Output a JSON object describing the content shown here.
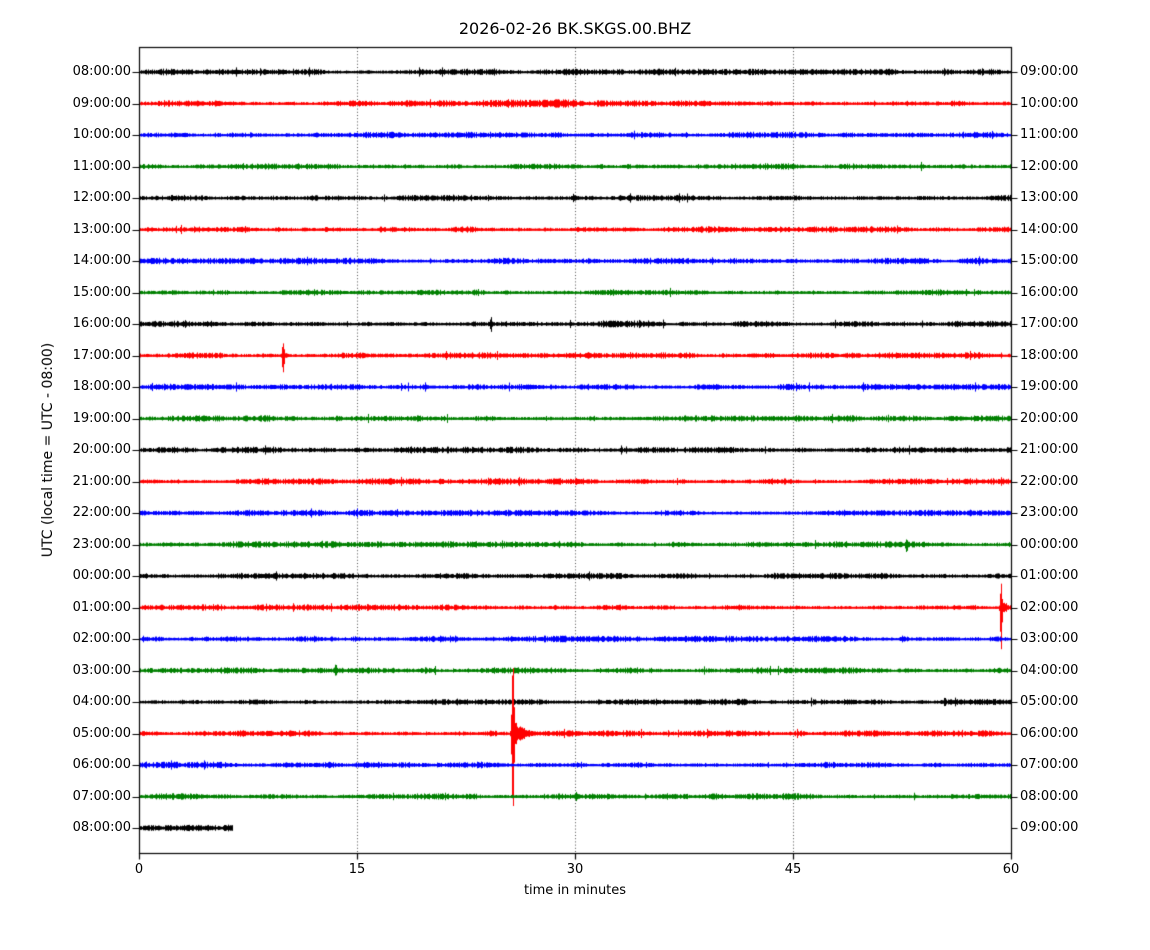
{
  "chart_data": {
    "type": "line",
    "title": "2026-02-26 BK.SKGS.00.BHZ",
    "xlabel": "time in minutes",
    "ylabel": "UTC (local time = UTC - 08:00)",
    "xlim": [
      0,
      60
    ],
    "x_ticks": [
      "0",
      "15",
      "30",
      "45",
      "60"
    ],
    "x_tick_values": [
      0,
      15,
      30,
      45,
      60
    ],
    "x_gridlines_minutes": [
      15,
      30,
      45
    ],
    "grid_style": "dotted-vertical",
    "legend": "none",
    "minutes_per_row": 60,
    "trace_color_cycle": [
      "#000000",
      "#ff0000",
      "#0000ff",
      "#008000"
    ],
    "grid_color": "#3a3a3a",
    "default_noise_amp": 1.5,
    "rows": [
      {
        "left_label": "08:00:00",
        "right_label": "09:00:00",
        "color": "#000000",
        "extent_min": 60,
        "events": [
          {
            "minute": 49.7,
            "amp_up": 4,
            "amp_down": 4,
            "sigma": 0.06,
            "coda_amp": 0,
            "coda_tau": 0.2
          }
        ]
      },
      {
        "left_label": "09:00:00",
        "right_label": "10:00:00",
        "color": "#ff0000",
        "extent_min": 60,
        "bursts": [
          {
            "start": 17,
            "end": 30,
            "factor": 1.35
          }
        ]
      },
      {
        "left_label": "10:00:00",
        "right_label": "11:00:00",
        "color": "#0000ff",
        "extent_min": 60
      },
      {
        "left_label": "11:00:00",
        "right_label": "12:00:00",
        "color": "#008000",
        "extent_min": 60
      },
      {
        "left_label": "12:00:00",
        "right_label": "13:00:00",
        "color": "#000000",
        "extent_min": 60
      },
      {
        "left_label": "13:00:00",
        "right_label": "14:00:00",
        "color": "#ff0000",
        "extent_min": 60
      },
      {
        "left_label": "14:00:00",
        "right_label": "15:00:00",
        "color": "#0000ff",
        "extent_min": 60
      },
      {
        "left_label": "15:00:00",
        "right_label": "16:00:00",
        "color": "#008000",
        "extent_min": 60
      },
      {
        "left_label": "16:00:00",
        "right_label": "17:00:00",
        "color": "#000000",
        "extent_min": 60,
        "bursts": [
          {
            "start": 24,
            "end": 35,
            "factor": 1.3
          }
        ],
        "events": [
          {
            "minute": 24.2,
            "amp_up": 7,
            "amp_down": 8,
            "sigma": 0.09,
            "coda_amp": 4,
            "coda_tau": 0.2
          }
        ]
      },
      {
        "left_label": "17:00:00",
        "right_label": "18:00:00",
        "color": "#ff0000",
        "extent_min": 60,
        "events": [
          {
            "minute": 9.9,
            "amp_up": 13,
            "amp_down": 18,
            "sigma": 0.09,
            "coda_amp": 6,
            "coda_tau": 0.25
          }
        ]
      },
      {
        "left_label": "18:00:00",
        "right_label": "19:00:00",
        "color": "#0000ff",
        "extent_min": 60
      },
      {
        "left_label": "19:00:00",
        "right_label": "20:00:00",
        "color": "#008000",
        "extent_min": 60
      },
      {
        "left_label": "20:00:00",
        "right_label": "21:00:00",
        "color": "#000000",
        "extent_min": 60
      },
      {
        "left_label": "21:00:00",
        "right_label": "22:00:00",
        "color": "#ff0000",
        "extent_min": 60
      },
      {
        "left_label": "22:00:00",
        "right_label": "23:00:00",
        "color": "#0000ff",
        "extent_min": 60
      },
      {
        "left_label": "23:00:00",
        "right_label": "00:00:00",
        "color": "#008000",
        "extent_min": 60,
        "events": [
          {
            "minute": 52.8,
            "amp_up": 6,
            "amp_down": 9,
            "sigma": 0.1,
            "coda_amp": 4,
            "coda_tau": 0.2
          }
        ]
      },
      {
        "left_label": "00:00:00",
        "right_label": "01:00:00",
        "color": "#000000",
        "extent_min": 60
      },
      {
        "left_label": "01:00:00",
        "right_label": "02:00:00",
        "color": "#ff0000",
        "extent_min": 60,
        "events": [
          {
            "minute": 59.3,
            "amp_up": 24,
            "amp_down": 42,
            "sigma": 0.08,
            "coda_amp": 10,
            "coda_tau": 0.3
          }
        ]
      },
      {
        "left_label": "02:00:00",
        "right_label": "03:00:00",
        "color": "#0000ff",
        "extent_min": 60
      },
      {
        "left_label": "03:00:00",
        "right_label": "04:00:00",
        "color": "#008000",
        "extent_min": 60,
        "events": [
          {
            "minute": 13.5,
            "amp_up": 8,
            "amp_down": 7,
            "sigma": 0.1,
            "coda_amp": 4,
            "coda_tau": 0.2
          }
        ]
      },
      {
        "left_label": "04:00:00",
        "right_label": "05:00:00",
        "color": "#000000",
        "extent_min": 60
      },
      {
        "left_label": "05:00:00",
        "right_label": "06:00:00",
        "color": "#ff0000",
        "extent_min": 60,
        "events": [
          {
            "minute": 25.7,
            "amp_up": 72,
            "amp_down": 80,
            "sigma": 0.1,
            "coda_amp": 14,
            "coda_tau": 0.8
          }
        ]
      },
      {
        "left_label": "06:00:00",
        "right_label": "07:00:00",
        "color": "#0000ff",
        "extent_min": 60
      },
      {
        "left_label": "07:00:00",
        "right_label": "08:00:00",
        "color": "#008000",
        "extent_min": 60
      },
      {
        "left_label": "08:00:00",
        "right_label": "09:00:00",
        "color": "#000000",
        "extent_min": 6.4
      }
    ]
  }
}
